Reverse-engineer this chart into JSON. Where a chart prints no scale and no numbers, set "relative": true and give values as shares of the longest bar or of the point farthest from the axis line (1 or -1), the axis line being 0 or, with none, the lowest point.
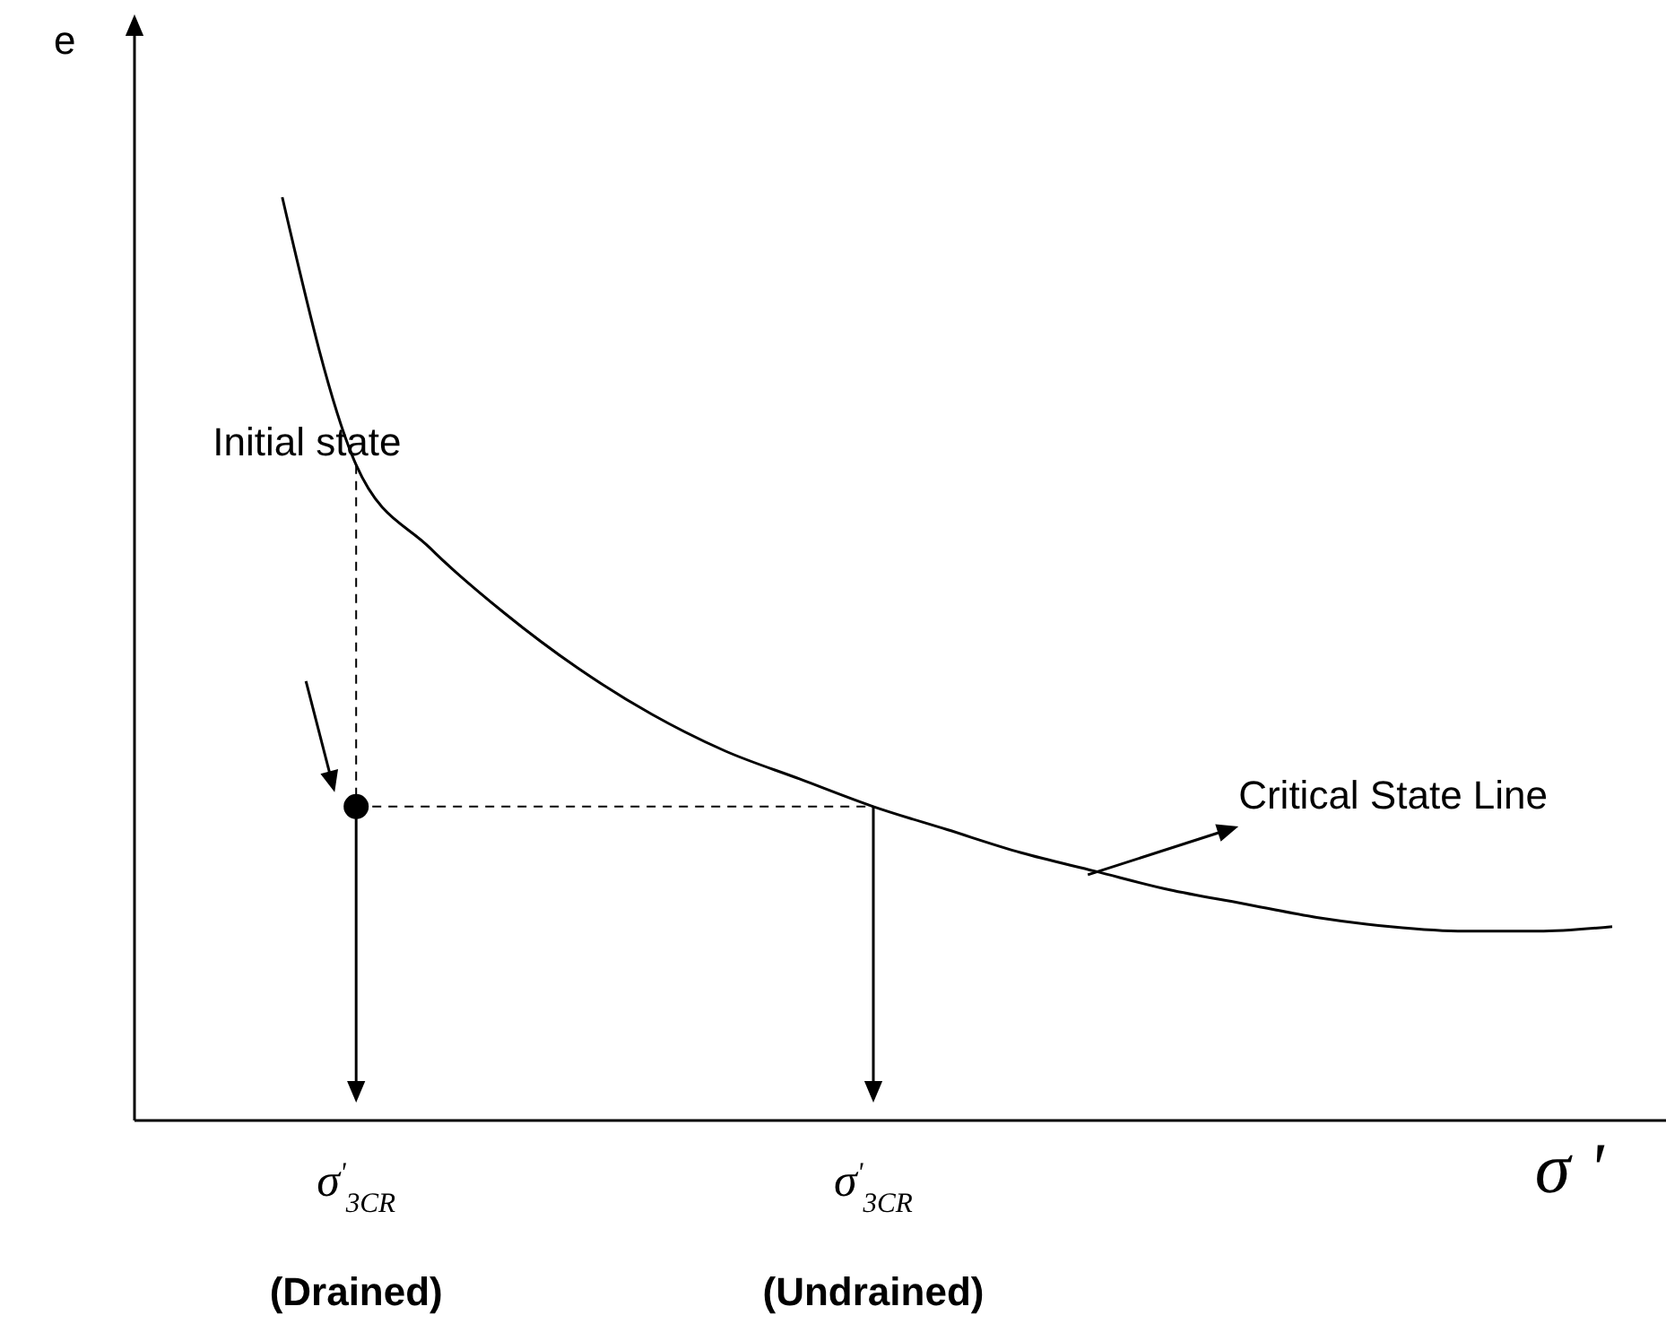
{
  "chart_data": {
    "type": "line",
    "relative": true,
    "xlabel": "σ '",
    "ylabel": "e",
    "categories": [
      null,
      null,
      null,
      "σ$^{'}$$_{3CR}$",
      null,
      null,
      null,
      null,
      null,
      null,
      "σ$^{'}$$_{3CR}$",
      null,
      null,
      null,
      null,
      null,
      null,
      null,
      null,
      null,
      null
    ],
    "series": [
      {
        "color": "#000000",
        "values": [
          null,
          null,
          1.0,
          0.71,
          0.62,
          0.55,
          0.49,
          0.44,
          0.4,
          0.37,
          0.34,
          0.315,
          0.29,
          0.27,
          0.25,
          0.235,
          0.22,
          0.21,
          0.205,
          0.205,
          0.21
        ]
      },
      {
        "type": "scatter",
        "color": "#000000",
        "marker": "circle",
        "values": [
          null,
          null,
          null,
          0.34,
          null,
          null,
          null,
          null,
          null,
          null,
          null,
          null,
          null,
          null,
          null,
          null,
          null,
          null,
          null,
          null,
          null
        ]
      }
    ],
    "annotations": [
      "Initial state",
      "Critical State Line",
      "(Drained)",
      "(Undrained)"
    ]
  }
}
